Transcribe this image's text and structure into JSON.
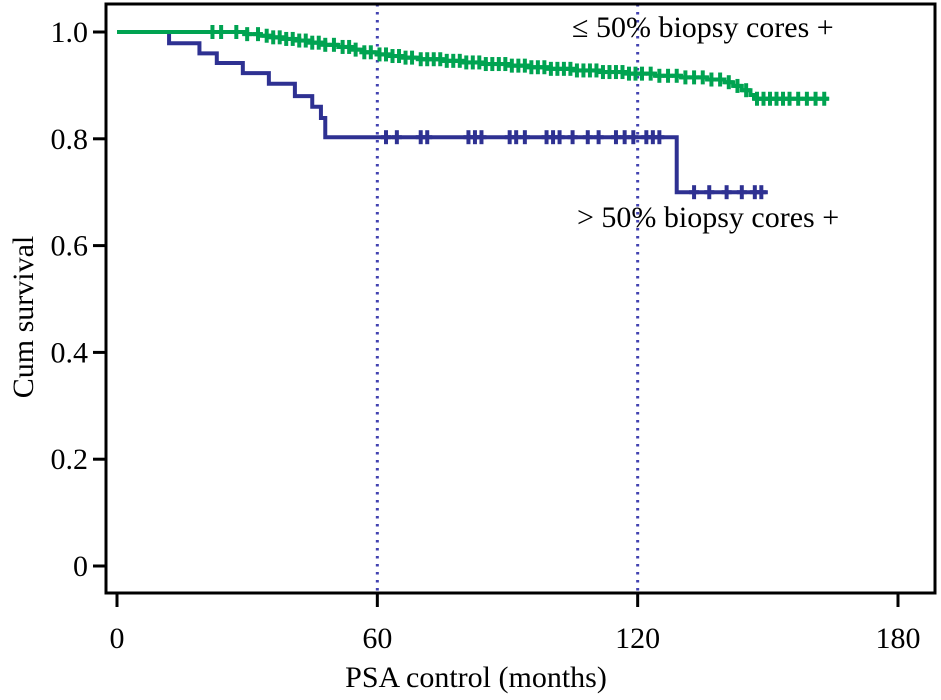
{
  "figure": {
    "background": "#ffffff",
    "text_color": "#000000"
  },
  "chart_data": {
    "type": "line",
    "subtype": "kaplan-meier-step-survival",
    "title": "",
    "xlabel": "PSA control (months)",
    "ylabel": "Cum survival",
    "xlim": [
      0,
      180
    ],
    "ylim": [
      0,
      1.0
    ],
    "xticks": [
      0,
      60,
      120,
      180
    ],
    "xtick_labels": [
      "0",
      "60",
      "120",
      "180"
    ],
    "yticks": [
      0,
      0.2,
      0.4,
      0.6,
      0.8,
      1.0
    ],
    "ytick_labels": [
      "0",
      "0.2",
      "0.4",
      "0.6",
      "0.8",
      "1.0"
    ],
    "grid": false,
    "legend_position": "inline-annotations",
    "reference_lines_x": [
      60,
      120
    ],
    "colors": {
      "axis": "#000000",
      "reference": "#4242B0"
    },
    "series": [
      {
        "id": "le50",
        "name": "≤ 50% biopsy cores +",
        "color": "#00A351",
        "end_month": 164,
        "steps": [
          [
            0,
            1.0
          ],
          [
            30,
            0.996
          ],
          [
            33,
            0.993
          ],
          [
            36,
            0.99
          ],
          [
            39,
            0.987
          ],
          [
            42,
            0.984
          ],
          [
            45,
            0.98
          ],
          [
            48,
            0.976
          ],
          [
            51,
            0.972
          ],
          [
            54,
            0.967
          ],
          [
            57,
            0.962
          ],
          [
            60,
            0.958
          ],
          [
            63,
            0.955
          ],
          [
            66,
            0.952
          ],
          [
            70,
            0.949
          ],
          [
            75,
            0.946
          ],
          [
            80,
            0.943
          ],
          [
            85,
            0.94
          ],
          [
            90,
            0.937
          ],
          [
            95,
            0.934
          ],
          [
            100,
            0.931
          ],
          [
            106,
            0.928
          ],
          [
            112,
            0.925
          ],
          [
            118,
            0.922
          ],
          [
            124,
            0.918
          ],
          [
            130,
            0.915
          ],
          [
            136,
            0.911
          ],
          [
            140,
            0.906
          ],
          [
            142,
            0.899
          ],
          [
            144,
            0.891
          ],
          [
            146,
            0.882
          ],
          [
            147,
            0.875
          ]
        ],
        "censor_months": [
          22,
          24,
          27.5,
          30,
          32.5,
          34.5,
          36,
          37.5,
          39,
          40.5,
          42,
          43.5,
          45,
          46.5,
          48,
          50,
          52,
          53.5,
          55,
          57,
          58.5,
          60.5,
          62,
          63.5,
          65,
          66.5,
          68,
          70,
          71.5,
          73,
          74.5,
          76,
          77.5,
          79,
          80.5,
          82,
          83.5,
          85,
          86.5,
          88,
          89.5,
          91,
          92.5,
          94,
          95.5,
          97,
          98.5,
          100,
          101.5,
          103,
          104.5,
          106,
          107.5,
          109,
          110.5,
          112,
          113.5,
          115,
          116.5,
          118,
          119.5,
          121,
          123,
          125,
          127,
          129,
          131,
          133,
          135,
          137,
          139,
          141,
          143,
          145,
          147.5,
          149,
          150.5,
          152,
          153.5,
          155,
          157,
          159,
          161,
          163
        ]
      },
      {
        "id": "gt50",
        "name": "> 50% biopsy cores +",
        "color": "#2E3192",
        "end_month": 150,
        "steps": [
          [
            0,
            1.0
          ],
          [
            12,
            0.979
          ],
          [
            19,
            0.96
          ],
          [
            23,
            0.942
          ],
          [
            29,
            0.923
          ],
          [
            35,
            0.903
          ],
          [
            41,
            0.88
          ],
          [
            45,
            0.86
          ],
          [
            47,
            0.839
          ],
          [
            48,
            0.803
          ],
          [
            129,
            0.7
          ]
        ],
        "censor_months": [
          62,
          64.5,
          70,
          71.5,
          81,
          82.5,
          84,
          90.5,
          92,
          94,
          99,
          100.5,
          102,
          105,
          108.5,
          111,
          115,
          117,
          119,
          122,
          123.5,
          125,
          133,
          136.5,
          140.5,
          144,
          147,
          148.5
        ]
      }
    ]
  }
}
